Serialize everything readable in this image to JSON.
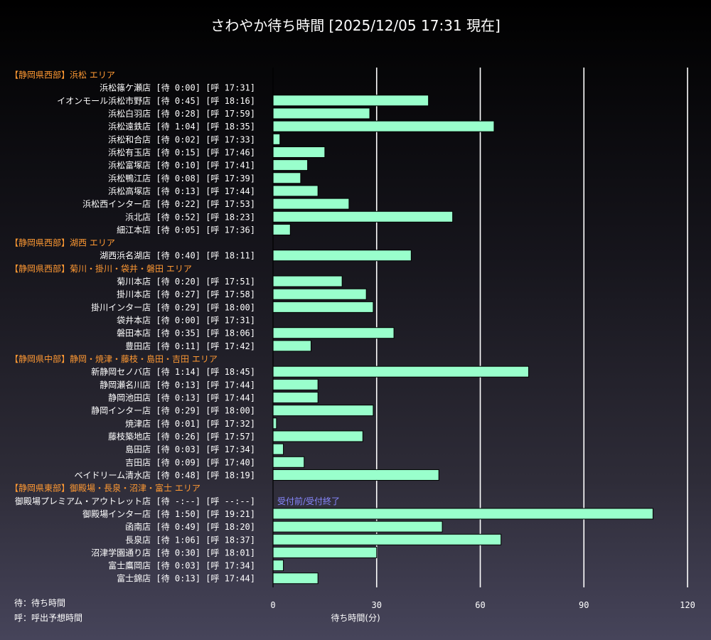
{
  "title": "さわやか待ち時間 [2025/12/05 17:31 現在]",
  "legend": {
    "wait": "待：待ち時間",
    "call": "呼：呼出予想時間"
  },
  "colors": {
    "bar": "#99ffcc",
    "bar_border": "#000000",
    "header": "#ff9933",
    "status": "#8888ff",
    "grid": "#ffffff",
    "text": "#ffffff"
  },
  "chart_data": {
    "type": "bar",
    "orientation": "horizontal",
    "title": "さわやか待ち時間 [2025/12/05 17:31 現在]",
    "xlabel": "待ち時間(分)",
    "ylabel": "",
    "xlim": [
      0,
      120
    ],
    "xticks": [
      0,
      30,
      60,
      90,
      120
    ],
    "grid": true,
    "rows": [
      {
        "kind": "header",
        "label": "【静岡県西部】浜松 エリア"
      },
      {
        "kind": "store",
        "label": "浜松篠ケ瀬店 [待 0:00] [呼 17:31]",
        "value": 0
      },
      {
        "kind": "store",
        "label": "イオンモール浜松市野店 [待 0:45] [呼 18:16]",
        "value": 45
      },
      {
        "kind": "store",
        "label": "浜松白羽店 [待 0:28] [呼 17:59]",
        "value": 28
      },
      {
        "kind": "store",
        "label": "浜松遠鉄店 [待 1:04] [呼 18:35]",
        "value": 64
      },
      {
        "kind": "store",
        "label": "浜松和合店 [待 0:02] [呼 17:33]",
        "value": 2
      },
      {
        "kind": "store",
        "label": "浜松有玉店 [待 0:15] [呼 17:46]",
        "value": 15
      },
      {
        "kind": "store",
        "label": "浜松富塚店 [待 0:10] [呼 17:41]",
        "value": 10
      },
      {
        "kind": "store",
        "label": "浜松鴨江店 [待 0:08] [呼 17:39]",
        "value": 8
      },
      {
        "kind": "store",
        "label": "浜松高塚店 [待 0:13] [呼 17:44]",
        "value": 13
      },
      {
        "kind": "store",
        "label": "浜松西インター店 [待 0:22] [呼 17:53]",
        "value": 22
      },
      {
        "kind": "store",
        "label": "浜北店 [待 0:52] [呼 18:23]",
        "value": 52
      },
      {
        "kind": "store",
        "label": "細江本店 [待 0:05] [呼 17:36]",
        "value": 5
      },
      {
        "kind": "header",
        "label": "【静岡県西部】湖西 エリア"
      },
      {
        "kind": "store",
        "label": "湖西浜名湖店 [待 0:40] [呼 18:11]",
        "value": 40
      },
      {
        "kind": "header",
        "label": "【静岡県西部】菊川・掛川・袋井・磐田 エリア"
      },
      {
        "kind": "store",
        "label": "菊川本店 [待 0:20] [呼 17:51]",
        "value": 20
      },
      {
        "kind": "store",
        "label": "掛川本店 [待 0:27] [呼 17:58]",
        "value": 27
      },
      {
        "kind": "store",
        "label": "掛川インター店 [待 0:29] [呼 18:00]",
        "value": 29
      },
      {
        "kind": "store",
        "label": "袋井本店 [待 0:00] [呼 17:31]",
        "value": 0
      },
      {
        "kind": "store",
        "label": "磐田本店 [待 0:35] [呼 18:06]",
        "value": 35
      },
      {
        "kind": "store",
        "label": "豊田店 [待 0:11] [呼 17:42]",
        "value": 11
      },
      {
        "kind": "header",
        "label": "【静岡県中部】静岡・焼津・藤枝・島田・吉田 エリア"
      },
      {
        "kind": "store",
        "label": "新静岡セノバ店 [待 1:14] [呼 18:45]",
        "value": 74
      },
      {
        "kind": "store",
        "label": "静岡瀬名川店 [待 0:13] [呼 17:44]",
        "value": 13
      },
      {
        "kind": "store",
        "label": "静岡池田店 [待 0:13] [呼 17:44]",
        "value": 13
      },
      {
        "kind": "store",
        "label": "静岡インター店 [待 0:29] [呼 18:00]",
        "value": 29
      },
      {
        "kind": "store",
        "label": "焼津店 [待 0:01] [呼 17:32]",
        "value": 1
      },
      {
        "kind": "store",
        "label": "藤枝築地店 [待 0:26] [呼 17:57]",
        "value": 26
      },
      {
        "kind": "store",
        "label": "島田店 [待 0:03] [呼 17:34]",
        "value": 3
      },
      {
        "kind": "store",
        "label": "吉田店 [待 0:09] [呼 17:40]",
        "value": 9
      },
      {
        "kind": "store",
        "label": "ベイドリーム清水店 [待 0:48] [呼 18:19]",
        "value": 48
      },
      {
        "kind": "header",
        "label": "【静岡県東部】御殿場・長泉・沼津・富士 エリア"
      },
      {
        "kind": "store",
        "label": "御殿場プレミアム・アウトレット店 [待 -:--] [呼 --:--]",
        "value": null,
        "status": "受付前/受付終了"
      },
      {
        "kind": "store",
        "label": "御殿場インター店 [待 1:50] [呼 19:21]",
        "value": 110
      },
      {
        "kind": "store",
        "label": "函南店 [待 0:49] [呼 18:20]",
        "value": 49
      },
      {
        "kind": "store",
        "label": "長泉店 [待 1:06] [呼 18:37]",
        "value": 66
      },
      {
        "kind": "store",
        "label": "沼津学園通り店 [待 0:30] [呼 18:01]",
        "value": 30
      },
      {
        "kind": "store",
        "label": "富士鷹岡店 [待 0:03] [呼 17:34]",
        "value": 3
      },
      {
        "kind": "store",
        "label": "富士錦店 [待 0:13] [呼 17:44]",
        "value": 13
      }
    ]
  }
}
